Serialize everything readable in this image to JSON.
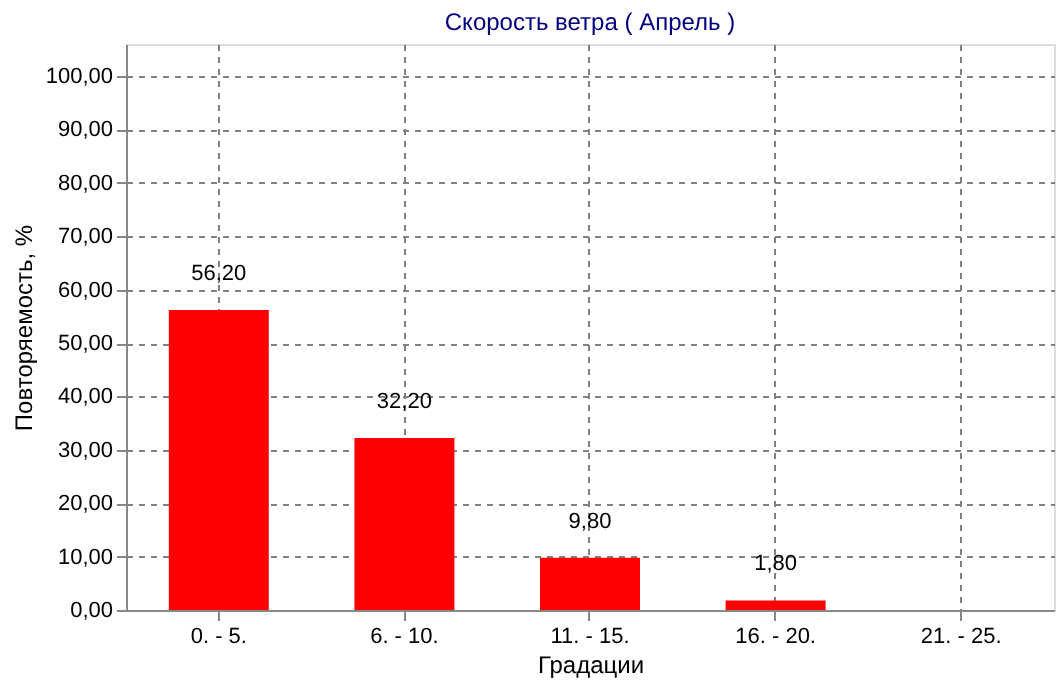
{
  "chart_data": {
    "type": "bar",
    "title": "Скорость ветра    ( Апрель )",
    "xlabel": "Градации",
    "ylabel": "Повторяемость, %",
    "categories": [
      "0. - 5.",
      "6. - 10.",
      "11. - 15.",
      "16. - 20.",
      "21. - 25."
    ],
    "values": [
      56.2,
      32.2,
      9.8,
      1.8,
      0
    ],
    "value_labels": [
      "56,20",
      "32,20",
      "9,80",
      "1,80",
      null
    ],
    "color": "#ff0000",
    "ylim": [
      0,
      106
    ],
    "yticks": [
      {
        "value": 0,
        "label": "0,00"
      },
      {
        "value": 10,
        "label": "10,00"
      },
      {
        "value": 20,
        "label": "20,00"
      },
      {
        "value": 30,
        "label": "30,00"
      },
      {
        "value": 40,
        "label": "40,00"
      },
      {
        "value": 50,
        "label": "50,00"
      },
      {
        "value": 60,
        "label": "60,00"
      },
      {
        "value": 70,
        "label": "70,00"
      },
      {
        "value": 80,
        "label": "80,00"
      },
      {
        "value": 90,
        "label": "90,00"
      },
      {
        "value": 100,
        "label": "100,00"
      }
    ],
    "grid": true
  }
}
